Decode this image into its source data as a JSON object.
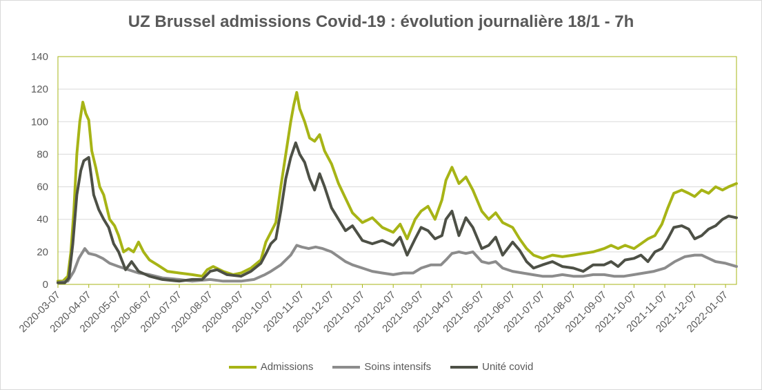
{
  "chart_data": {
    "type": "line",
    "title": "UZ Brussel admissions Covid-19 : évolution journalière 18/1 - 7h",
    "xlabel": "",
    "ylabel": "",
    "ylim": [
      0,
      140
    ],
    "yticks": [
      "0",
      "20",
      "40",
      "60",
      "80",
      "100",
      "120",
      "140"
    ],
    "xticks": [
      "2020-03-07",
      "2020-04-07",
      "2020-05-07",
      "2020-06-07",
      "2020-07-07",
      "2020-08-07",
      "2020-09-07",
      "2020-10-07",
      "2020-11-07",
      "2020-12-07",
      "2021-01-07",
      "2021-02-07",
      "2021-03-07",
      "2021-04-07",
      "2021-05-07",
      "2021-06-07",
      "2021-07-07",
      "2021-08-07",
      "2021-09-07",
      "2021-10-07",
      "2021-11-07",
      "2021-12-07",
      "2022-01-07"
    ],
    "grid": true,
    "legend_position": "bottom",
    "colors": {
      "Admissions": "#a7b416",
      "Soins intensifs": "#8c8c8c",
      "Unité covid": "#4d5046",
      "frame": "#a7b416",
      "grid": "#d9d9d9"
    },
    "series": [
      {
        "name": "Admissions",
        "points": [
          [
            "2020-03-07",
            2
          ],
          [
            "2020-03-12",
            2
          ],
          [
            "2020-03-17",
            5
          ],
          [
            "2020-03-20",
            20
          ],
          [
            "2020-03-23",
            45
          ],
          [
            "2020-03-26",
            80
          ],
          [
            "2020-03-29",
            100
          ],
          [
            "2020-04-01",
            112
          ],
          [
            "2020-04-04",
            105
          ],
          [
            "2020-04-07",
            101
          ],
          [
            "2020-04-10",
            82
          ],
          [
            "2020-04-14",
            72
          ],
          [
            "2020-04-18",
            60
          ],
          [
            "2020-04-22",
            55
          ],
          [
            "2020-04-28",
            40
          ],
          [
            "2020-05-03",
            36
          ],
          [
            "2020-05-07",
            30
          ],
          [
            "2020-05-12",
            20
          ],
          [
            "2020-05-17",
            22
          ],
          [
            "2020-05-22",
            20
          ],
          [
            "2020-05-27",
            26
          ],
          [
            "2020-06-01",
            20
          ],
          [
            "2020-06-07",
            15
          ],
          [
            "2020-06-15",
            12
          ],
          [
            "2020-06-25",
            8
          ],
          [
            "2020-07-07",
            7
          ],
          [
            "2020-07-20",
            6
          ],
          [
            "2020-07-30",
            5
          ],
          [
            "2020-08-04",
            9
          ],
          [
            "2020-08-10",
            11
          ],
          [
            "2020-08-20",
            8
          ],
          [
            "2020-08-30",
            6
          ],
          [
            "2020-09-07",
            7
          ],
          [
            "2020-09-17",
            10
          ],
          [
            "2020-09-27",
            15
          ],
          [
            "2020-10-02",
            26
          ],
          [
            "2020-10-07",
            32
          ],
          [
            "2020-10-12",
            38
          ],
          [
            "2020-10-17",
            60
          ],
          [
            "2020-10-22",
            80
          ],
          [
            "2020-10-27",
            100
          ],
          [
            "2020-10-30",
            110
          ],
          [
            "2020-11-02",
            118
          ],
          [
            "2020-11-05",
            108
          ],
          [
            "2020-11-10",
            100
          ],
          [
            "2020-11-15",
            90
          ],
          [
            "2020-11-20",
            88
          ],
          [
            "2020-11-25",
            92
          ],
          [
            "2020-11-30",
            82
          ],
          [
            "2020-12-07",
            74
          ],
          [
            "2020-12-14",
            62
          ],
          [
            "2020-12-21",
            53
          ],
          [
            "2020-12-28",
            44
          ],
          [
            "2021-01-07",
            38
          ],
          [
            "2021-01-17",
            41
          ],
          [
            "2021-01-27",
            35
          ],
          [
            "2021-02-07",
            32
          ],
          [
            "2021-02-14",
            37
          ],
          [
            "2021-02-21",
            28
          ],
          [
            "2021-03-01",
            40
          ],
          [
            "2021-03-07",
            45
          ],
          [
            "2021-03-14",
            48
          ],
          [
            "2021-03-21",
            40
          ],
          [
            "2021-03-28",
            52
          ],
          [
            "2021-04-01",
            64
          ],
          [
            "2021-04-07",
            72
          ],
          [
            "2021-04-14",
            62
          ],
          [
            "2021-04-21",
            66
          ],
          [
            "2021-04-28",
            58
          ],
          [
            "2021-05-07",
            45
          ],
          [
            "2021-05-14",
            40
          ],
          [
            "2021-05-21",
            44
          ],
          [
            "2021-05-28",
            38
          ],
          [
            "2021-06-07",
            35
          ],
          [
            "2021-06-14",
            28
          ],
          [
            "2021-06-21",
            22
          ],
          [
            "2021-06-28",
            18
          ],
          [
            "2021-07-07",
            16
          ],
          [
            "2021-07-17",
            18
          ],
          [
            "2021-07-27",
            17
          ],
          [
            "2021-08-07",
            18
          ],
          [
            "2021-08-17",
            19
          ],
          [
            "2021-08-27",
            20
          ],
          [
            "2021-09-07",
            22
          ],
          [
            "2021-09-14",
            24
          ],
          [
            "2021-09-21",
            22
          ],
          [
            "2021-09-28",
            24
          ],
          [
            "2021-10-07",
            22
          ],
          [
            "2021-10-14",
            25
          ],
          [
            "2021-10-21",
            28
          ],
          [
            "2021-10-28",
            30
          ],
          [
            "2021-11-04",
            37
          ],
          [
            "2021-11-10",
            47
          ],
          [
            "2021-11-16",
            56
          ],
          [
            "2021-11-24",
            58
          ],
          [
            "2021-12-01",
            56
          ],
          [
            "2021-12-07",
            54
          ],
          [
            "2021-12-14",
            58
          ],
          [
            "2021-12-21",
            56
          ],
          [
            "2021-12-28",
            60
          ],
          [
            "2022-01-04",
            58
          ],
          [
            "2022-01-10",
            60
          ],
          [
            "2022-01-18",
            62
          ]
        ]
      },
      {
        "name": "Soins intensifs",
        "points": [
          [
            "2020-03-07",
            1
          ],
          [
            "2020-03-17",
            2
          ],
          [
            "2020-03-23",
            8
          ],
          [
            "2020-03-28",
            16
          ],
          [
            "2020-04-03",
            22
          ],
          [
            "2020-04-07",
            19
          ],
          [
            "2020-04-14",
            18
          ],
          [
            "2020-04-21",
            16
          ],
          [
            "2020-04-28",
            13
          ],
          [
            "2020-05-07",
            11
          ],
          [
            "2020-05-17",
            9
          ],
          [
            "2020-05-27",
            7
          ],
          [
            "2020-06-07",
            6
          ],
          [
            "2020-06-20",
            4
          ],
          [
            "2020-07-07",
            3
          ],
          [
            "2020-07-20",
            2
          ],
          [
            "2020-08-07",
            3
          ],
          [
            "2020-08-20",
            2
          ],
          [
            "2020-09-07",
            2
          ],
          [
            "2020-09-20",
            3
          ],
          [
            "2020-10-01",
            6
          ],
          [
            "2020-10-07",
            8
          ],
          [
            "2020-10-17",
            12
          ],
          [
            "2020-10-27",
            18
          ],
          [
            "2020-11-02",
            24
          ],
          [
            "2020-11-07",
            23
          ],
          [
            "2020-11-14",
            22
          ],
          [
            "2020-11-21",
            23
          ],
          [
            "2020-11-28",
            22
          ],
          [
            "2020-12-07",
            20
          ],
          [
            "2020-12-14",
            17
          ],
          [
            "2020-12-21",
            14
          ],
          [
            "2020-12-28",
            12
          ],
          [
            "2021-01-07",
            10
          ],
          [
            "2021-01-17",
            8
          ],
          [
            "2021-01-27",
            7
          ],
          [
            "2021-02-07",
            6
          ],
          [
            "2021-02-17",
            7
          ],
          [
            "2021-02-27",
            7
          ],
          [
            "2021-03-07",
            10
          ],
          [
            "2021-03-17",
            12
          ],
          [
            "2021-03-27",
            12
          ],
          [
            "2021-04-01",
            15
          ],
          [
            "2021-04-07",
            19
          ],
          [
            "2021-04-14",
            20
          ],
          [
            "2021-04-21",
            19
          ],
          [
            "2021-04-28",
            20
          ],
          [
            "2021-05-07",
            14
          ],
          [
            "2021-05-14",
            13
          ],
          [
            "2021-05-21",
            14
          ],
          [
            "2021-05-28",
            10
          ],
          [
            "2021-06-07",
            8
          ],
          [
            "2021-06-17",
            7
          ],
          [
            "2021-06-27",
            6
          ],
          [
            "2021-07-07",
            5
          ],
          [
            "2021-07-17",
            5
          ],
          [
            "2021-07-27",
            6
          ],
          [
            "2021-08-07",
            5
          ],
          [
            "2021-08-17",
            5
          ],
          [
            "2021-08-27",
            6
          ],
          [
            "2021-09-07",
            6
          ],
          [
            "2021-09-17",
            5
          ],
          [
            "2021-09-27",
            5
          ],
          [
            "2021-10-07",
            6
          ],
          [
            "2021-10-17",
            7
          ],
          [
            "2021-10-27",
            8
          ],
          [
            "2021-11-07",
            10
          ],
          [
            "2021-11-17",
            14
          ],
          [
            "2021-11-27",
            17
          ],
          [
            "2021-12-07",
            18
          ],
          [
            "2021-12-14",
            18
          ],
          [
            "2021-12-21",
            16
          ],
          [
            "2021-12-28",
            14
          ],
          [
            "2022-01-07",
            13
          ],
          [
            "2022-01-18",
            11
          ]
        ]
      },
      {
        "name": "Unité covid",
        "points": [
          [
            "2020-03-07",
            1
          ],
          [
            "2020-03-14",
            1
          ],
          [
            "2020-03-18",
            4
          ],
          [
            "2020-03-22",
            25
          ],
          [
            "2020-03-26",
            55
          ],
          [
            "2020-03-30",
            70
          ],
          [
            "2020-04-02",
            76
          ],
          [
            "2020-04-07",
            78
          ],
          [
            "2020-04-12",
            55
          ],
          [
            "2020-04-17",
            46
          ],
          [
            "2020-04-22",
            40
          ],
          [
            "2020-04-27",
            35
          ],
          [
            "2020-05-02",
            25
          ],
          [
            "2020-05-07",
            20
          ],
          [
            "2020-05-14",
            9
          ],
          [
            "2020-05-20",
            14
          ],
          [
            "2020-05-27",
            8
          ],
          [
            "2020-06-07",
            5
          ],
          [
            "2020-06-20",
            3
          ],
          [
            "2020-07-07",
            2
          ],
          [
            "2020-07-20",
            3
          ],
          [
            "2020-07-30",
            3
          ],
          [
            "2020-08-07",
            8
          ],
          [
            "2020-08-14",
            9
          ],
          [
            "2020-08-24",
            6
          ],
          [
            "2020-09-07",
            5
          ],
          [
            "2020-09-17",
            8
          ],
          [
            "2020-09-27",
            13
          ],
          [
            "2020-10-03",
            20
          ],
          [
            "2020-10-07",
            25
          ],
          [
            "2020-10-12",
            28
          ],
          [
            "2020-10-17",
            45
          ],
          [
            "2020-10-22",
            65
          ],
          [
            "2020-10-27",
            78
          ],
          [
            "2020-11-01",
            87
          ],
          [
            "2020-11-05",
            80
          ],
          [
            "2020-11-10",
            75
          ],
          [
            "2020-11-15",
            65
          ],
          [
            "2020-11-20",
            58
          ],
          [
            "2020-11-25",
            68
          ],
          [
            "2020-11-30",
            60
          ],
          [
            "2020-12-07",
            47
          ],
          [
            "2020-12-14",
            40
          ],
          [
            "2020-12-21",
            33
          ],
          [
            "2020-12-28",
            36
          ],
          [
            "2021-01-07",
            27
          ],
          [
            "2021-01-17",
            25
          ],
          [
            "2021-01-27",
            27
          ],
          [
            "2021-02-07",
            24
          ],
          [
            "2021-02-14",
            29
          ],
          [
            "2021-02-21",
            18
          ],
          [
            "2021-03-01",
            28
          ],
          [
            "2021-03-07",
            35
          ],
          [
            "2021-03-14",
            33
          ],
          [
            "2021-03-21",
            28
          ],
          [
            "2021-03-28",
            30
          ],
          [
            "2021-04-01",
            40
          ],
          [
            "2021-04-07",
            45
          ],
          [
            "2021-04-14",
            30
          ],
          [
            "2021-04-21",
            41
          ],
          [
            "2021-04-28",
            35
          ],
          [
            "2021-05-07",
            22
          ],
          [
            "2021-05-14",
            24
          ],
          [
            "2021-05-21",
            29
          ],
          [
            "2021-05-28",
            18
          ],
          [
            "2021-06-07",
            26
          ],
          [
            "2021-06-14",
            21
          ],
          [
            "2021-06-21",
            14
          ],
          [
            "2021-06-28",
            10
          ],
          [
            "2021-07-07",
            12
          ],
          [
            "2021-07-17",
            14
          ],
          [
            "2021-07-27",
            11
          ],
          [
            "2021-08-07",
            10
          ],
          [
            "2021-08-17",
            8
          ],
          [
            "2021-08-27",
            12
          ],
          [
            "2021-09-07",
            12
          ],
          [
            "2021-09-14",
            14
          ],
          [
            "2021-09-21",
            11
          ],
          [
            "2021-09-28",
            15
          ],
          [
            "2021-10-07",
            16
          ],
          [
            "2021-10-14",
            18
          ],
          [
            "2021-10-21",
            14
          ],
          [
            "2021-10-28",
            20
          ],
          [
            "2021-11-04",
            22
          ],
          [
            "2021-11-10",
            28
          ],
          [
            "2021-11-16",
            35
          ],
          [
            "2021-11-24",
            36
          ],
          [
            "2021-12-01",
            34
          ],
          [
            "2021-12-07",
            28
          ],
          [
            "2021-12-14",
            30
          ],
          [
            "2021-12-21",
            34
          ],
          [
            "2021-12-28",
            36
          ],
          [
            "2022-01-04",
            40
          ],
          [
            "2022-01-10",
            42
          ],
          [
            "2022-01-18",
            41
          ]
        ]
      }
    ]
  }
}
